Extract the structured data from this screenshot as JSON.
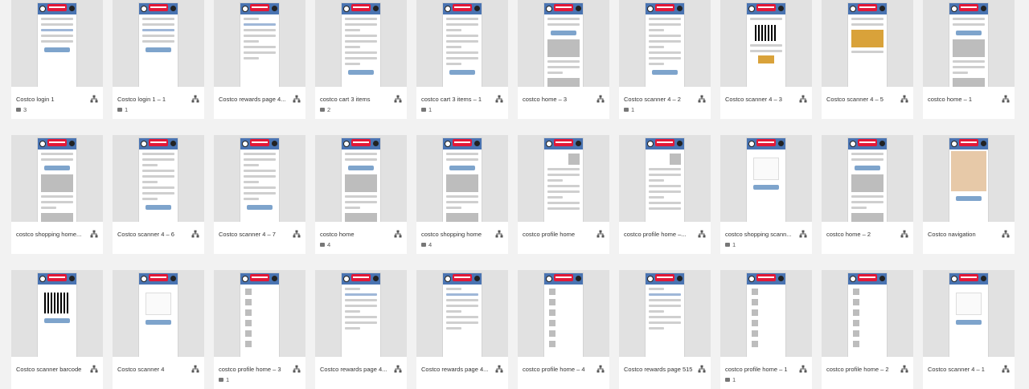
{
  "artboards": [
    {
      "title": "Costco login 1",
      "comments": "3",
      "kind": "login"
    },
    {
      "title": "Costco login 1 – 1",
      "comments": "1",
      "kind": "login"
    },
    {
      "title": "Costco rewards page 4...",
      "comments": "",
      "kind": "rewards"
    },
    {
      "title": "costco cart 3 items",
      "comments": "2",
      "kind": "cart"
    },
    {
      "title": "costco cart 3 items – 1",
      "comments": "1",
      "kind": "cart"
    },
    {
      "title": "costco home – 3",
      "comments": "",
      "kind": "home"
    },
    {
      "title": "Costco scanner 4 – 2",
      "comments": "1",
      "kind": "cart"
    },
    {
      "title": "Costco scanner 4 – 3",
      "comments": "",
      "kind": "qr"
    },
    {
      "title": "Costco scanner 4 – 5",
      "comments": "",
      "kind": "gold"
    },
    {
      "title": "costco home – 1",
      "comments": "",
      "kind": "home"
    },
    {
      "title": "costco shopping home...",
      "comments": "",
      "kind": "home"
    },
    {
      "title": "Costco scanner 4 – 6",
      "comments": "",
      "kind": "cart"
    },
    {
      "title": "Costco scanner 4 – 7",
      "comments": "",
      "kind": "cart"
    },
    {
      "title": "costco home",
      "comments": "4",
      "kind": "home"
    },
    {
      "title": "costco shopping home",
      "comments": "4",
      "kind": "home"
    },
    {
      "title": "costco profile home",
      "comments": "",
      "kind": "profile"
    },
    {
      "title": "costco profile home –...",
      "comments": "",
      "kind": "profile"
    },
    {
      "title": "costco shopping scann...",
      "comments": "1",
      "kind": "scanner"
    },
    {
      "title": "costco home – 2",
      "comments": "",
      "kind": "home"
    },
    {
      "title": "Costco navigation",
      "comments": "",
      "kind": "map"
    },
    {
      "title": "Costco scanner barcode",
      "comments": "",
      "kind": "barcode"
    },
    {
      "title": "Costco scanner 4",
      "comments": "",
      "kind": "scanner"
    },
    {
      "title": "costco profile home – 3",
      "comments": "1",
      "kind": "list"
    },
    {
      "title": "Costco rewards page 4...",
      "comments": "",
      "kind": "rewards"
    },
    {
      "title": "Costco rewards page 4...",
      "comments": "",
      "kind": "rewards"
    },
    {
      "title": "costco profile home – 4",
      "comments": "",
      "kind": "list"
    },
    {
      "title": "Costco rewards page 515",
      "comments": "",
      "kind": "rewards"
    },
    {
      "title": "costco profile home – 1",
      "comments": "1",
      "kind": "list"
    },
    {
      "title": "costco profile home – 2",
      "comments": "",
      "kind": "list"
    },
    {
      "title": "Costco scanner 4 – 1",
      "comments": "",
      "kind": "scanner"
    }
  ],
  "icons": {
    "flow": "flow-diagram-icon",
    "comment": "comment-icon"
  },
  "colors": {
    "header_blue": "#4a74b2",
    "logo_red": "#e31837",
    "button_blue": "#7ea4cc",
    "background": "#f2f2f2"
  }
}
